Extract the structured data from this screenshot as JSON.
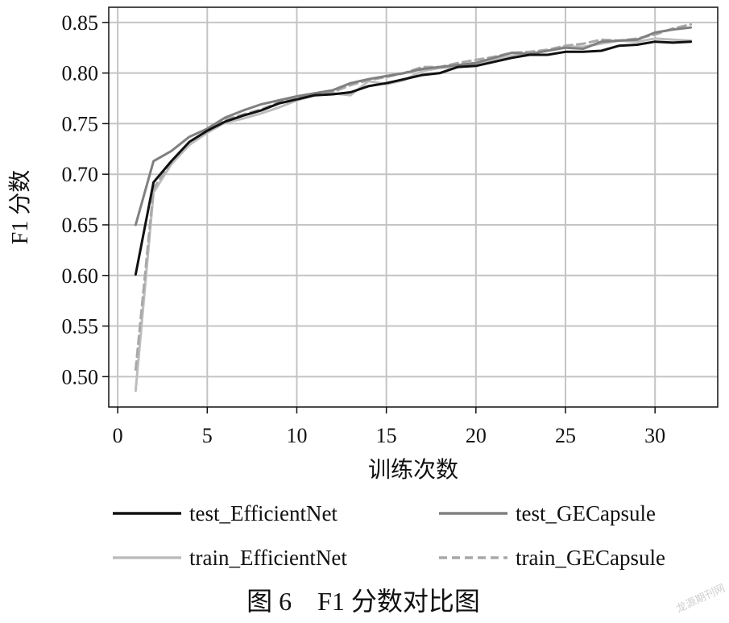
{
  "chart_data": {
    "type": "line",
    "title": "",
    "xlabel": "训练次数",
    "ylabel": "F1 分数",
    "xlim": [
      -0.5,
      33.5
    ],
    "ylim": [
      0.47,
      0.865
    ],
    "x_ticks": [
      0,
      5,
      10,
      15,
      20,
      25,
      30
    ],
    "y_ticks": [
      0.5,
      0.55,
      0.6,
      0.65,
      0.7,
      0.75,
      0.8,
      0.85
    ],
    "x_tick_labels": [
      "0",
      "5",
      "10",
      "15",
      "20",
      "25",
      "30"
    ],
    "y_tick_labels": [
      "0.50",
      "0.55",
      "0.60",
      "0.65",
      "0.70",
      "0.75",
      "0.80",
      "0.85"
    ],
    "grid": true,
    "legend_position": "bottom",
    "x": [
      1,
      2,
      3,
      4,
      5,
      6,
      7,
      8,
      9,
      10,
      11,
      12,
      13,
      14,
      15,
      16,
      17,
      18,
      19,
      20,
      21,
      22,
      23,
      24,
      25,
      26,
      27,
      28,
      29,
      30,
      31,
      32
    ],
    "series": [
      {
        "name": "test_EfficientNet",
        "color": "#111111",
        "dash": "solid",
        "values": [
          0.601,
          0.692,
          0.713,
          0.732,
          0.743,
          0.752,
          0.758,
          0.763,
          0.77,
          0.774,
          0.778,
          0.779,
          0.781,
          0.787,
          0.79,
          0.794,
          0.798,
          0.8,
          0.806,
          0.807,
          0.811,
          0.815,
          0.818,
          0.818,
          0.821,
          0.821,
          0.822,
          0.827,
          0.828,
          0.831,
          0.83,
          0.831
        ]
      },
      {
        "name": "test_GECapsule",
        "color": "#808080",
        "dash": "solid",
        "values": [
          0.65,
          0.713,
          0.723,
          0.737,
          0.745,
          0.756,
          0.763,
          0.769,
          0.773,
          0.777,
          0.78,
          0.783,
          0.79,
          0.794,
          0.797,
          0.8,
          0.804,
          0.806,
          0.808,
          0.81,
          0.815,
          0.82,
          0.819,
          0.822,
          0.825,
          0.824,
          0.831,
          0.832,
          0.833,
          0.84,
          0.843,
          0.845
        ]
      },
      {
        "name": "train_EfficientNet",
        "color": "#bdbdbd",
        "dash": "solid",
        "values": [
          0.486,
          0.682,
          0.71,
          0.729,
          0.741,
          0.751,
          0.755,
          0.76,
          0.766,
          0.773,
          0.778,
          0.78,
          0.778,
          0.792,
          0.789,
          0.793,
          0.802,
          0.805,
          0.806,
          0.809,
          0.813,
          0.817,
          0.819,
          0.822,
          0.826,
          0.826,
          0.829,
          0.832,
          0.831,
          0.834,
          0.833,
          0.832
        ]
      },
      {
        "name": "train_GECapsule",
        "color": "#a9a9a9",
        "dash": "dashed",
        "values": [
          0.507,
          0.686,
          0.712,
          0.732,
          0.742,
          0.754,
          0.759,
          0.764,
          0.771,
          0.775,
          0.779,
          0.781,
          0.788,
          0.793,
          0.796,
          0.8,
          0.806,
          0.806,
          0.81,
          0.813,
          0.816,
          0.82,
          0.821,
          0.823,
          0.827,
          0.829,
          0.833,
          0.832,
          0.834,
          0.838,
          0.844,
          0.848
        ]
      }
    ],
    "caption": "图 6    F1 分数对比图"
  },
  "watermark": "龙源期刊网"
}
